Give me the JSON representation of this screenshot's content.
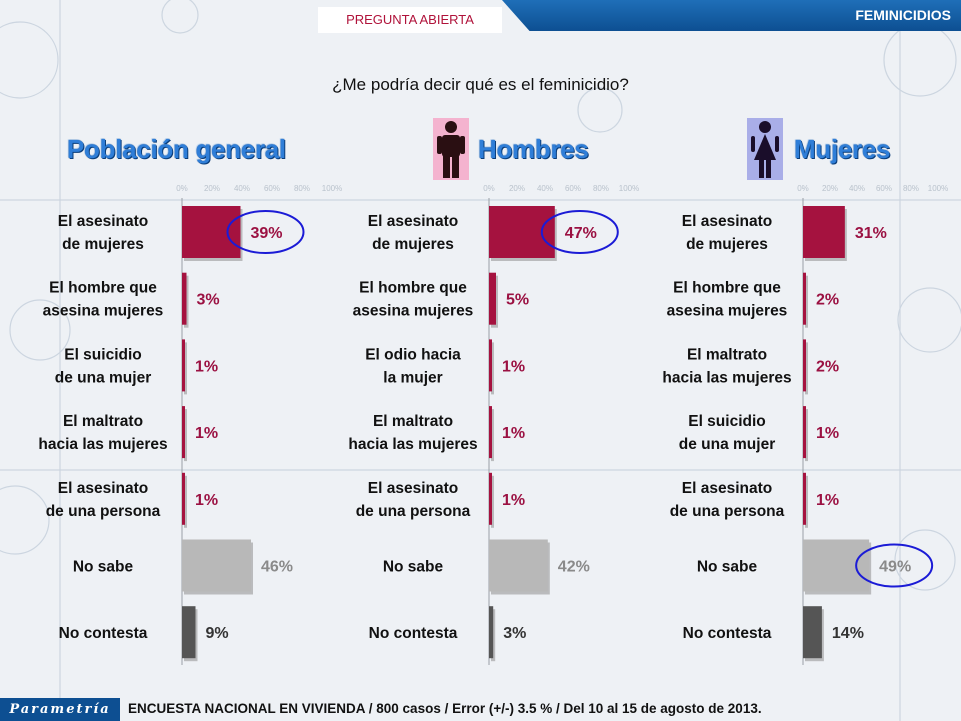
{
  "header": {
    "tag": "PREGUNTA ABIERTA",
    "section": "FEMINICIDIOS"
  },
  "question": "¿Me podría decir qué es el feminicidio?",
  "footer": {
    "logo": "Parametría",
    "note": "ENCUESTA NACIONAL EN VIVIENDA / 800 casos / Error (+/-) 3.5 % / Del 10 al 15 de agosto de 2013."
  },
  "colors": {
    "title_blue": "#2f7ed8",
    "value_red": "#9b1142",
    "bar_red": "#a5123f",
    "bar_no_sabe": "#b8b8b8",
    "bar_no_contesta": "#555555",
    "text_gray": "#8a8a8a",
    "circle_blue": "#1b1bd6"
  },
  "icons": {
    "men": "man-icon",
    "women": "woman-icon"
  },
  "chart_data": [
    {
      "type": "bar",
      "title": "Población general",
      "axis_ticks": [
        "0%",
        "20%",
        "40%",
        "60%",
        "80%",
        "100%"
      ],
      "xlim": [
        0,
        100
      ],
      "categories": [
        "El asesinato de mujeres",
        "El hombre que asesina mujeres",
        "El suicidio de una mujer",
        "El maltrato hacia las mujeres",
        "El asesinato de una persona",
        "No sabe",
        "No contesta"
      ],
      "values": [
        39,
        3,
        1,
        1,
        1,
        46,
        9
      ],
      "labels": [
        "39%",
        "3%",
        "1%",
        "1%",
        "1%",
        "46%",
        "9%"
      ],
      "highlight": [
        0
      ]
    },
    {
      "type": "bar",
      "title": "Hombres",
      "axis_ticks": [
        "0%",
        "20%",
        "40%",
        "60%",
        "80%",
        "100%"
      ],
      "xlim": [
        0,
        100
      ],
      "categories": [
        "El asesinato de mujeres",
        "El hombre que asesina mujeres",
        "El odio hacia la mujer",
        "El maltrato hacia las mujeres",
        "El asesinato de una persona",
        "No sabe",
        "No contesta"
      ],
      "values": [
        47,
        5,
        1,
        1,
        1,
        42,
        3
      ],
      "labels": [
        "47%",
        "5%",
        "1%",
        "1%",
        "1%",
        "42%",
        "3%"
      ],
      "highlight": [
        0
      ]
    },
    {
      "type": "bar",
      "title": "Mujeres",
      "axis_ticks": [
        "0%",
        "20%",
        "40%",
        "60%",
        "80%",
        "100%"
      ],
      "xlim": [
        0,
        100
      ],
      "categories": [
        "El asesinato de mujeres",
        "El hombre que asesina mujeres",
        "El maltrato hacia las mujeres",
        "El suicidio de una mujer",
        "El asesinato de una persona",
        "No sabe",
        "No contesta"
      ],
      "values": [
        31,
        2,
        2,
        1,
        1,
        49,
        14
      ],
      "labels": [
        "31%",
        "2%",
        "2%",
        "1%",
        "1%",
        "49%",
        "14%"
      ],
      "highlight": [
        5
      ]
    }
  ]
}
